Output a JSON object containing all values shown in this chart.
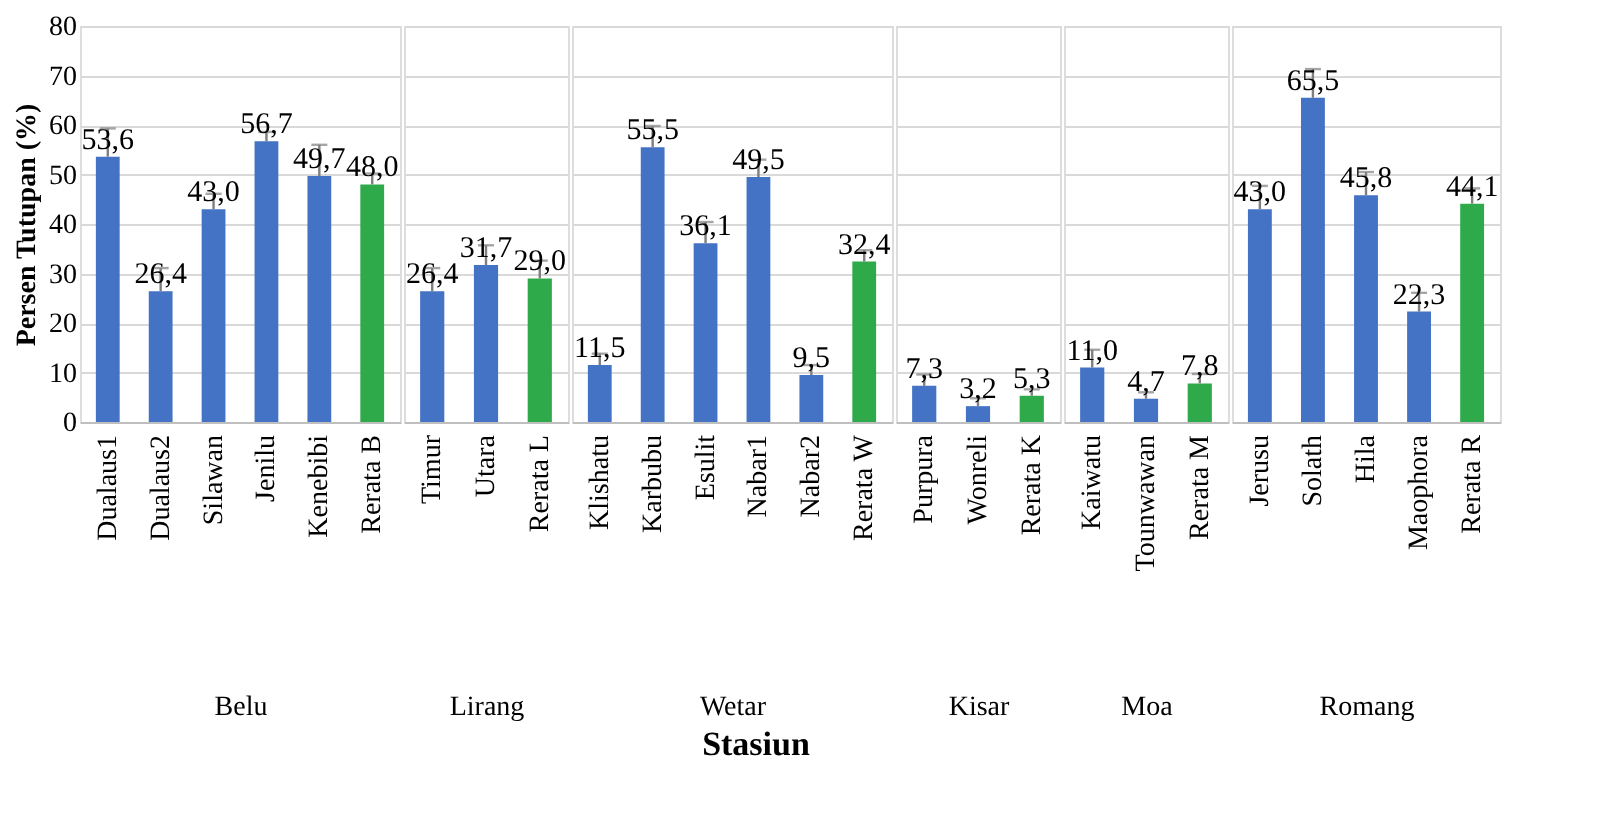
{
  "chart_data": [
    {
      "type": "bar",
      "xlabel": "Belu",
      "ylabel": "Persen Tutupan (%)",
      "annotations": [
        "Stasiun"
      ],
      "categories": [
        "Dualaus1",
        "Dualaus2",
        "Silawan",
        "Jenilu",
        "Kenebibi",
        "Rerata B"
      ],
      "values": [
        53.6,
        26.4,
        43.0,
        56.7,
        49.7,
        48.0
      ],
      "value_labels": [
        "53,6",
        "26,4",
        "43,0",
        "56,7",
        "49,7",
        "48,0"
      ],
      "errors": [
        [
          53.6,
          59.3
        ],
        [
          26.4,
          31.1
        ],
        [
          43.0,
          46.1
        ],
        [
          56.7,
          58.6
        ],
        [
          49.7,
          56.0
        ],
        [
          48.0,
          50.2
        ]
      ],
      "colors": [
        "#4472c4",
        "#4472c4",
        "#4472c4",
        "#4472c4",
        "#4472c4",
        "#2eaa4a"
      ],
      "ylim": [
        0,
        80
      ],
      "yticks": [
        0,
        10,
        20,
        30,
        40,
        50,
        60,
        70,
        80
      ],
      "grid": "y"
    },
    {
      "type": "bar",
      "xlabel": "Lirang",
      "categories": [
        "Timur",
        "Utara",
        "Rerata L"
      ],
      "values": [
        26.4,
        31.7,
        29.0
      ],
      "value_labels": [
        "26,4",
        "31,7",
        "29,0"
      ],
      "errors": [
        [
          26.4,
          31.1
        ],
        [
          31.7,
          35.7
        ],
        [
          29.0,
          32.6
        ]
      ],
      "colors": [
        "#4472c4",
        "#4472c4",
        "#2eaa4a"
      ],
      "ylim": [
        0,
        80
      ],
      "yticks": [
        0,
        10,
        20,
        30,
        40,
        50,
        60,
        70,
        80
      ],
      "grid": "y",
      "tick_labels": "x"
    },
    {
      "type": "bar",
      "xlabel": "Wetar",
      "categories": [
        "Klishatu",
        "Karbubu",
        "Esulit",
        "Nabar1",
        "Nabar2",
        "Rerata W"
      ],
      "values": [
        11.5,
        55.5,
        36.1,
        49.5,
        9.5,
        32.4
      ],
      "value_labels": [
        "11,5",
        "55,5",
        "36,1",
        "49,5",
        "9,5",
        "32,4"
      ],
      "errors": [
        [
          11.5,
          13.8
        ],
        [
          55.5,
          59.8
        ],
        [
          36.1,
          40.4
        ],
        [
          49.5,
          53.0
        ],
        [
          9.5,
          11.5
        ],
        [
          32.4,
          34.7
        ]
      ],
      "colors": [
        "#4472c4",
        "#4472c4",
        "#4472c4",
        "#4472c4",
        "#4472c4",
        "#2eaa4a"
      ],
      "ylim": [
        0,
        80
      ],
      "yticks": [
        0,
        10,
        20,
        30,
        40,
        50,
        60,
        70,
        80
      ],
      "grid": "y",
      "tick_labels": "x"
    },
    {
      "type": "bar",
      "xlabel": "Kisar",
      "categories": [
        "Purpura",
        "Wonreli",
        "Rerata K"
      ],
      "values": [
        7.3,
        3.2,
        5.3
      ],
      "value_labels": [
        "7,3",
        "3,2",
        "5,3"
      ],
      "errors": [
        [
          7.3,
          9.6
        ],
        [
          3.2,
          4.8
        ],
        [
          5.3,
          6.6
        ]
      ],
      "colors": [
        "#4472c4",
        "#4472c4",
        "#2eaa4a"
      ],
      "ylim": [
        0,
        80
      ],
      "yticks": [
        0,
        10,
        20,
        30,
        40,
        50,
        60,
        70,
        80
      ],
      "grid": "y",
      "tick_labels": "x"
    },
    {
      "type": "bar",
      "xlabel": "Moa",
      "categories": [
        "Kaiwatu",
        "Tounwawan",
        "Rerata M"
      ],
      "values": [
        11.0,
        4.7,
        7.8
      ],
      "value_labels": [
        "11,0",
        "4,7",
        "7,8"
      ],
      "errors": [
        [
          11.0,
          14.6
        ],
        [
          4.7,
          6.0
        ],
        [
          7.8,
          9.7
        ]
      ],
      "colors": [
        "#4472c4",
        "#4472c4",
        "#2eaa4a"
      ],
      "ylim": [
        0,
        80
      ],
      "yticks": [
        0,
        10,
        20,
        30,
        40,
        50,
        60,
        70,
        80
      ],
      "grid": "y",
      "tick_labels": "x"
    },
    {
      "type": "bar",
      "xlabel": "Romang",
      "categories": [
        "Jerusu",
        "Solath",
        "Hila",
        "Maophora",
        "Rerata R"
      ],
      "values": [
        43.0,
        65.5,
        45.8,
        22.3,
        44.1
      ],
      "value_labels": [
        "43,0",
        "65,5",
        "45,8",
        "22,3",
        "44,1"
      ],
      "errors": [
        [
          43.0,
          47.7
        ],
        [
          65.5,
          71.3
        ],
        [
          45.8,
          50.5
        ],
        [
          22.3,
          26.1
        ],
        [
          44.1,
          47.2
        ]
      ],
      "colors": [
        "#4472c4",
        "#4472c4",
        "#4472c4",
        "#4472c4",
        "#2eaa4a"
      ],
      "ylim": [
        0,
        80
      ],
      "yticks": [
        0,
        10,
        20,
        30,
        40,
        50,
        60,
        70,
        80
      ],
      "grid": "y",
      "tick_labels": "x"
    }
  ]
}
